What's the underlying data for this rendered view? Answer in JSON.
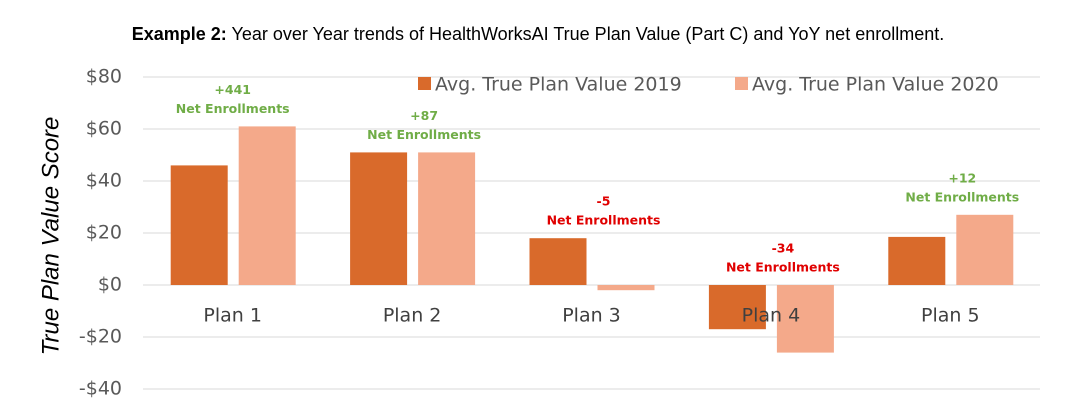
{
  "chart_data": {
    "type": "bar",
    "title_prefix": "Example 2:",
    "title": "Year over Year trends of HealthWorksAI True Plan Value (Part C) and YoY net enrollment.",
    "y_label": "True Plan Value Score",
    "categories": [
      "Plan 1",
      "Plan 2",
      "Plan 3",
      "Plan 4",
      "Plan 5"
    ],
    "series": [
      {
        "name": "Avg. True Plan Value 2019",
        "color": "#d96a2b",
        "values": [
          46,
          51,
          18,
          -17,
          18.5
        ]
      },
      {
        "name": "Avg. True Plan Value 2020",
        "color": "#f4a98a",
        "values": [
          61,
          51,
          -2,
          -26,
          27
        ]
      }
    ],
    "annotations": [
      {
        "value": 441,
        "label": "+441",
        "text": "Net Enrollments",
        "color": "#70ad47"
      },
      {
        "value": 87,
        "label": "+87",
        "text": "Net Enrollments",
        "color": "#70ad47"
      },
      {
        "value": -5,
        "label": "-5",
        "text": "Net Enrollments",
        "color": "#e00000"
      },
      {
        "value": -34,
        "label": "-34",
        "text": "Net Enrollments",
        "color": "#e00000"
      },
      {
        "value": 12,
        "label": "+12",
        "text": "Net Enrollments",
        "color": "#70ad47"
      }
    ],
    "ylim": [
      -40,
      80
    ],
    "yticks": [
      {
        "value": -40,
        "label": "-$40"
      },
      {
        "value": -20,
        "label": "-$20"
      },
      {
        "value": 0,
        "label": "$0"
      },
      {
        "value": 20,
        "label": "$20"
      },
      {
        "value": 40,
        "label": "$40"
      },
      {
        "value": 60,
        "label": "$60"
      },
      {
        "value": 80,
        "label": "$80"
      }
    ],
    "grid": true,
    "legend": "top"
  }
}
